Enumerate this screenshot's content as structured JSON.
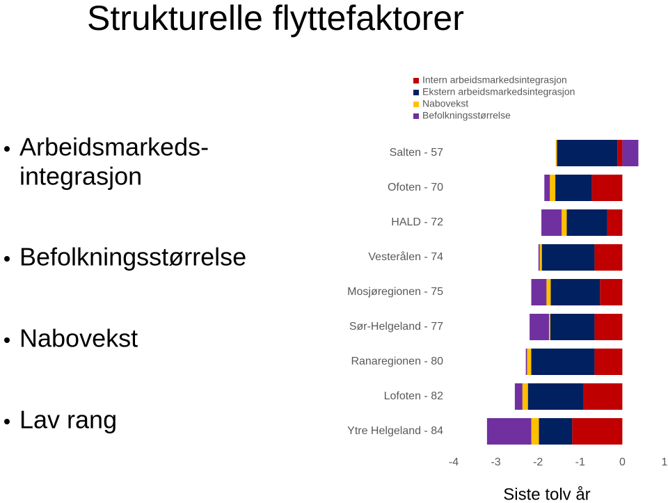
{
  "slide": {
    "title": "Strukturelle flyttefaktorer",
    "bullets": [
      [
        "Arbeidsmarkeds-",
        "integrasjon"
      ],
      [
        "Befolkningsstørrelse"
      ],
      [
        "Nabovekst"
      ],
      [
        "Lav rang"
      ]
    ]
  },
  "chart_data": {
    "type": "stacked-barh",
    "xlabel": "Siste tolv år",
    "categories": [
      "Salten - 57",
      "Ofoten - 70",
      "HALD - 72",
      "Vesterålen - 74",
      "Mosjøregionen - 75",
      "Sør-Helgeland - 77",
      "Ranaregionen - 80",
      "Lofoten - 82",
      "Ytre Helgeland - 84"
    ],
    "series": [
      {
        "name": "Intern arbeidsmarkedsintegrasjon",
        "color": "#c00000",
        "values": [
          -0.12,
          -0.72,
          -0.36,
          -0.66,
          -0.53,
          -0.66,
          -0.66,
          -0.92,
          -1.19
        ]
      },
      {
        "name": "Ekstern arbeidsmarkedsintegrasjon",
        "color": "#002060",
        "values": [
          -1.43,
          -0.87,
          -0.96,
          -1.25,
          -1.17,
          -1.05,
          -1.5,
          -1.32,
          -0.79
        ]
      },
      {
        "name": "Nabovekst",
        "color": "#ffc000",
        "values": [
          -0.03,
          -0.13,
          -0.12,
          -0.05,
          -0.1,
          -0.03,
          -0.1,
          -0.13,
          -0.18
        ]
      },
      {
        "name": "Befolkningsstørrelse",
        "color": "#7030a0",
        "values": [
          0.38,
          -0.13,
          -0.48,
          -0.03,
          -0.36,
          -0.46,
          -0.03,
          -0.18,
          -1.05
        ]
      }
    ],
    "xlim": [
      -4,
      1
    ],
    "xticks": [
      -4,
      -3,
      -2,
      -1,
      0,
      1
    ],
    "legend": "top"
  }
}
